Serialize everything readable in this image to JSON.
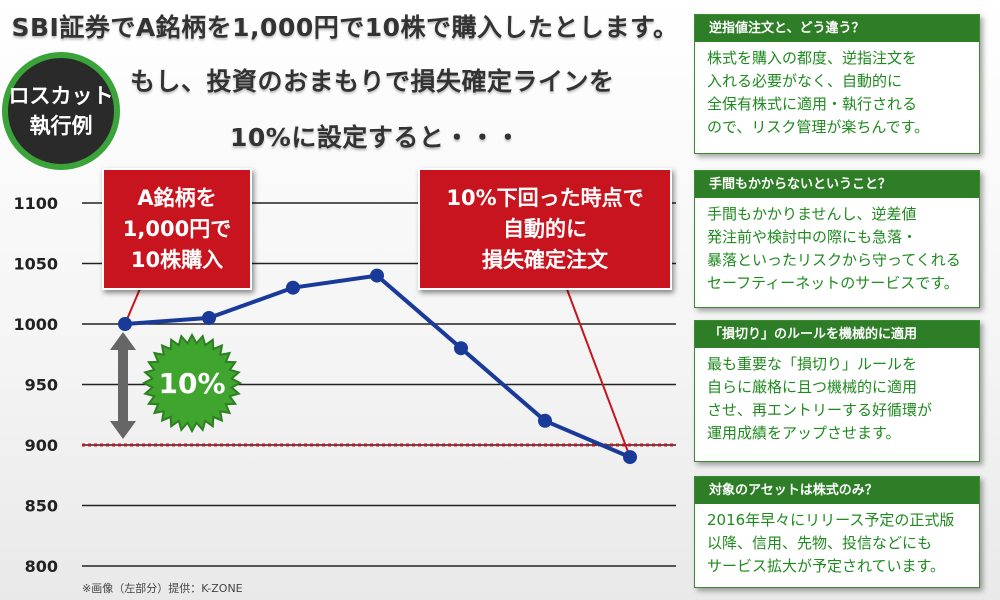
{
  "headline": {
    "line1": "SBI証券でA銘柄を1,000円で10株で購入したとします。",
    "line2": "もし、投資のおまもりで損失確定ラインを",
    "line3": "10%に設定すると・・・"
  },
  "badge": {
    "line1": "ロスカット",
    "line2": "執行例"
  },
  "chart_data": {
    "type": "line",
    "y_ticks": [
      "1100",
      "1050",
      "1000",
      "950",
      "900",
      "850",
      "800"
    ],
    "ylim": [
      800,
      1100
    ],
    "values": [
      1000,
      1005,
      1030,
      1040,
      980,
      920,
      890
    ],
    "threshold": 900,
    "percent_label": "10%",
    "line_color": "#1a3a9a",
    "threshold_color": "#c8141e"
  },
  "callouts": {
    "buy": {
      "line1": "A銘柄を",
      "line2": "1,000円で",
      "line3": "10株購入"
    },
    "stop": {
      "line1": "10%下回った時点で",
      "line2": "自動的に",
      "line3": "損失確定注文"
    }
  },
  "credit": "※画像（左部分）提供：K-ZONE",
  "panels": [
    {
      "title": "逆指値注文と、どう違う？",
      "body": "株式を購入の都度、逆指注文を\n入れる必要がなく、自動的に\n全保有株式に適用・執行される\nので、リスク管理が楽ちんです。"
    },
    {
      "title": "手間もかからないということ？",
      "body": "手間もかかりませんし、逆差値\n発注前や検討中の際にも急落・\n暴落といったリスクから守ってくれる\nセーフティーネットのサービスです。"
    },
    {
      "title": "「損切り」のルールを機械的に適用",
      "body": "最も重要な「損切り」ルールを\n自らに厳格に且つ機械的に適用\nさせ、再エントリーする好循環が\n運用成績をアップさせます。"
    },
    {
      "title": "対象のアセットは株式のみ？",
      "body": "2016年早々にリリース予定の正式版\n以降、信用、先物、投信などにも\nサービス拡大が予定されています。"
    }
  ],
  "colors": {
    "accent_green": "#2e7d27",
    "callout_red": "#c8141e"
  }
}
